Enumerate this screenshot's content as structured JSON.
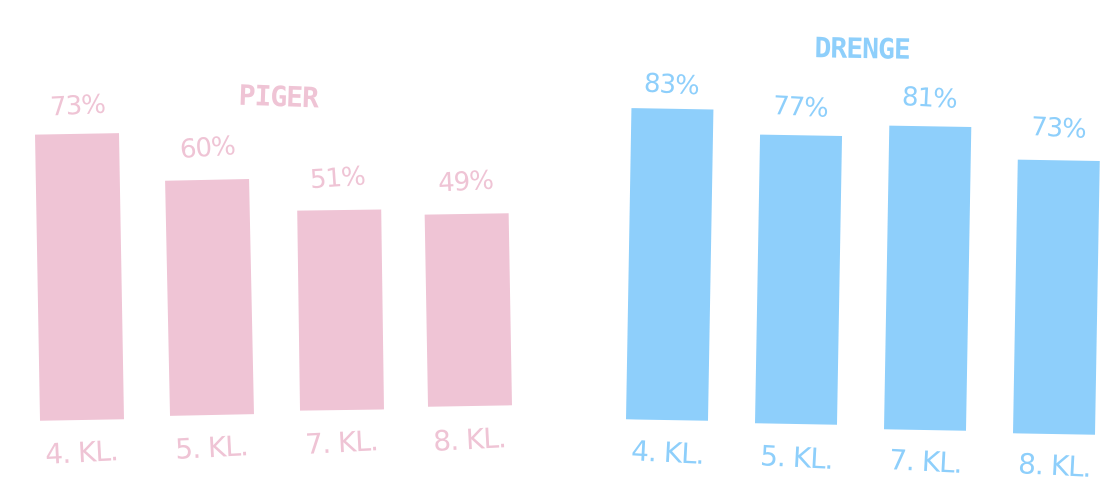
{
  "chart_data": [
    {
      "type": "bar",
      "title": "PIGER",
      "categories": [
        "4. KL.",
        "5. KL.",
        "7. KL.",
        "8. KL."
      ],
      "values": [
        73,
        60,
        51,
        49
      ],
      "value_labels": [
        "73%",
        "60%",
        "51%",
        "49%"
      ],
      "unit": "%",
      "color": "#efc4d5",
      "grid": false,
      "legend": "none"
    },
    {
      "type": "bar",
      "title": "DRENGE",
      "categories": [
        "4. KL.",
        "5. KL.",
        "7. KL.",
        "8. KL."
      ],
      "values": [
        83,
        77,
        81,
        73
      ],
      "value_labels": [
        "83%",
        "77%",
        "81%",
        "73%"
      ],
      "unit": "%",
      "color": "#8ecffb",
      "grid": false,
      "legend": "none"
    }
  ]
}
